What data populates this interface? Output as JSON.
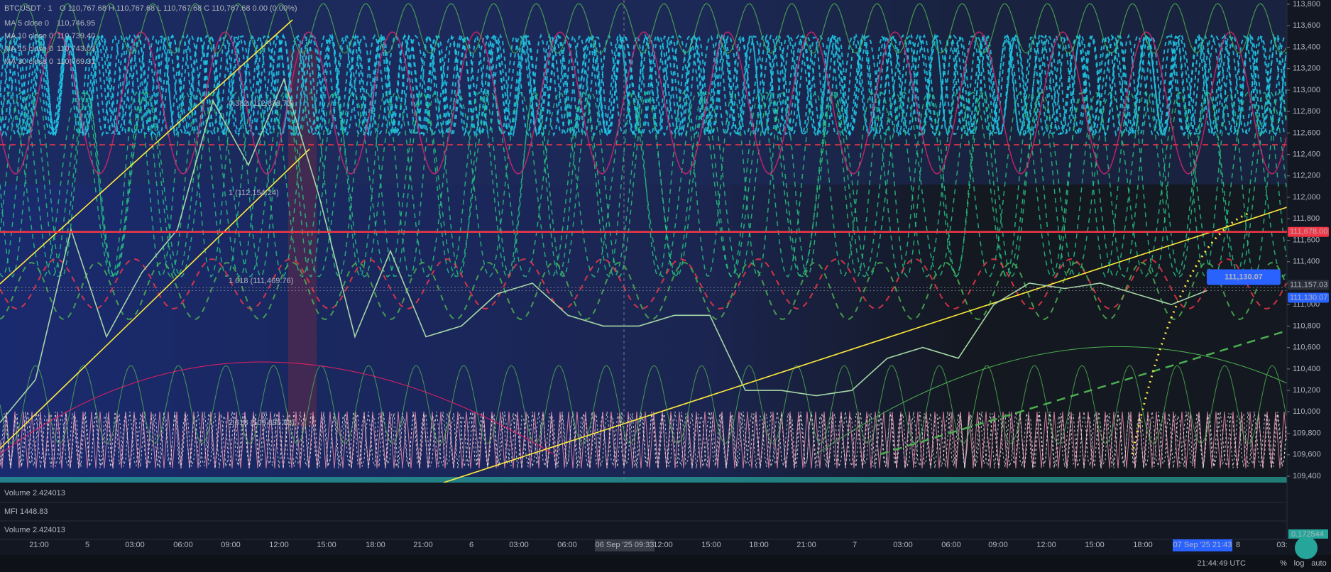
{
  "header": {
    "symbol": "BTCUSDT · 1",
    "ohlc": "O 110,767.68 H 110,767.68 L 110,767.68 C 110,767.68 0.00 (0.00%)",
    "indicators": [
      {
        "name": "MA 5 close 0",
        "value": "110,746.95",
        "color": "#26a69a"
      },
      {
        "name": "MA 10 close 0",
        "value": "110,739.40",
        "color": "#b2b5be"
      },
      {
        "name": "MA 15 close 0",
        "value": "110,743.03",
        "color": "#4caf50"
      },
      {
        "name": "MA 30 close 0",
        "value": "110,769.31",
        "color": "#e91e63"
      }
    ]
  },
  "fib_labels": [
    "0.382 (112,838.73)",
    "1 (112,154.24)",
    "1.618 (111,469.76)",
    "2.618 (109,895.83)"
  ],
  "price_axis": [
    {
      "value": 113800,
      "label": "113,800"
    },
    {
      "value": 113600,
      "label": "113,600"
    },
    {
      "value": 113400,
      "label": "113,400"
    },
    {
      "value": 113200,
      "label": "113,200"
    },
    {
      "value": 113000,
      "label": "113,000"
    },
    {
      "value": 112800,
      "label": "112,800"
    },
    {
      "value": 112600,
      "label": "112,600"
    },
    {
      "value": 112400,
      "label": "112,400"
    },
    {
      "value": 112200,
      "label": "112,200"
    },
    {
      "value": 112000,
      "label": "112,000"
    },
    {
      "value": 111800,
      "label": "111,800"
    },
    {
      "value": 111600,
      "label": "111,600"
    },
    {
      "value": 111400,
      "label": "111,400"
    },
    {
      "value": 111200,
      "label": "111,200"
    },
    {
      "value": 111000,
      "label": "111,000"
    },
    {
      "value": 110800,
      "label": "110,800"
    },
    {
      "value": 110600,
      "label": "110,600"
    },
    {
      "value": 110400,
      "label": "110,400"
    },
    {
      "value": 110200,
      "label": "110,200"
    },
    {
      "value": 110000,
      "label": "110,000"
    },
    {
      "value": 109800,
      "label": "109,800"
    },
    {
      "value": 109600,
      "label": "109,600"
    },
    {
      "value": 109400,
      "label": "109,400"
    }
  ],
  "price_badges": [
    {
      "value": 111678,
      "label": "111,678.00",
      "color": "#f23645"
    },
    {
      "value": 111157.03,
      "label": "111,157.03",
      "color": "#2a2e39"
    },
    {
      "value": 111130.07,
      "label": "111,130.07",
      "color": "#2962ff"
    }
  ],
  "last_price_tag": "111,130.07",
  "price_path": [
    109900,
    110300,
    111700,
    110700,
    111300,
    111700,
    112900,
    112300,
    113100,
    112000,
    110700,
    111500,
    110700,
    110800,
    111100,
    111200,
    110900,
    110800,
    110800,
    110900,
    110900,
    110200,
    110200,
    110150,
    110200,
    110500,
    110600,
    110500,
    111000,
    111200,
    111150,
    111200,
    111100,
    111000,
    111130
  ],
  "panes": [
    {
      "name": "Volume",
      "value": "2.424013"
    },
    {
      "name": "MFI 14",
      "value": "48.83"
    },
    {
      "name": "Volume",
      "value": "2.424013"
    }
  ],
  "volume_badge": "0.172544",
  "time_axis": [
    "21:00",
    "5",
    "03:00",
    "06:00",
    "09:00",
    "12:00",
    "15:00",
    "18:00",
    "21:00",
    "6",
    "03:00",
    "06:00",
    "12:00",
    "15:00",
    "18:00",
    "21:00",
    "7",
    "03:00",
    "06:00",
    "09:00",
    "12:00",
    "15:00",
    "18:00",
    "8",
    "03:"
  ],
  "crosshair_time": "06 Sep '25   09:33",
  "last_time": "07 Sep '25   21:43",
  "footer": {
    "clock": "21:44:49 UTC",
    "percent": "%",
    "log": "log",
    "auto": "auto"
  }
}
